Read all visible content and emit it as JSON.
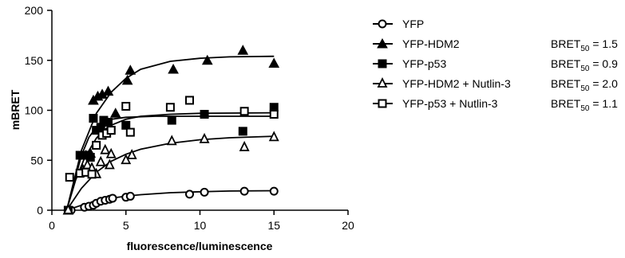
{
  "chart_data": {
    "type": "scatter",
    "xlabel": "fluorescence/luminescence",
    "ylabel": "mBRET",
    "xlim": [
      0,
      20
    ],
    "ylim": [
      0,
      200
    ],
    "x_ticks": [
      0,
      5,
      10,
      15,
      20
    ],
    "y_ticks": [
      0,
      50,
      100,
      150,
      200
    ],
    "grid": false,
    "legend_position": "right",
    "bret_label_main": "BRET",
    "bret_label_sub": "50",
    "series": [
      {
        "name": "YFP",
        "marker": "open-circle",
        "bret50": "",
        "points": [
          [
            1.1,
            0
          ],
          [
            1.3,
            0
          ],
          [
            2.2,
            3
          ],
          [
            2.5,
            4
          ],
          [
            2.8,
            5
          ],
          [
            3.0,
            7
          ],
          [
            3.3,
            9
          ],
          [
            3.6,
            10
          ],
          [
            3.9,
            11
          ],
          [
            4.1,
            12
          ],
          [
            5.0,
            13
          ],
          [
            5.3,
            14
          ],
          [
            9.3,
            16
          ],
          [
            10.3,
            18
          ],
          [
            13.0,
            19
          ],
          [
            15.0,
            19
          ]
        ],
        "curve": [
          [
            1.0,
            0
          ],
          [
            2,
            5
          ],
          [
            3,
            9
          ],
          [
            4,
            12
          ],
          [
            5,
            14
          ],
          [
            6,
            15.5
          ],
          [
            8,
            17.5
          ],
          [
            10,
            18.5
          ],
          [
            12,
            19.2
          ],
          [
            15,
            19.5
          ]
        ]
      },
      {
        "name": "YFP-HDM2",
        "marker": "filled-triangle",
        "bret50": " = 1.5",
        "points": [
          [
            1.1,
            0
          ],
          [
            2.0,
            38
          ],
          [
            2.3,
            55
          ],
          [
            2.6,
            57
          ],
          [
            2.8,
            110
          ],
          [
            3.1,
            114
          ],
          [
            3.4,
            116
          ],
          [
            3.8,
            119
          ],
          [
            4.3,
            97
          ],
          [
            5.1,
            130
          ],
          [
            5.3,
            140
          ],
          [
            8.2,
            141
          ],
          [
            10.5,
            150
          ],
          [
            12.9,
            160
          ],
          [
            15.0,
            147
          ]
        ],
        "curve": [
          [
            1.0,
            0
          ],
          [
            2,
            60
          ],
          [
            3,
            97
          ],
          [
            4,
            118
          ],
          [
            5,
            132
          ],
          [
            6,
            141
          ],
          [
            8,
            149
          ],
          [
            10,
            152
          ],
          [
            12,
            153.5
          ],
          [
            15,
            154
          ]
        ]
      },
      {
        "name": "YFP-p53",
        "marker": "filled-square",
        "bret50": " = 0.9",
        "points": [
          [
            1.1,
            0
          ],
          [
            1.9,
            55
          ],
          [
            2.3,
            55
          ],
          [
            2.6,
            53
          ],
          [
            2.8,
            92
          ],
          [
            3.0,
            80
          ],
          [
            3.3,
            83
          ],
          [
            3.5,
            90
          ],
          [
            3.8,
            88
          ],
          [
            4.0,
            80
          ],
          [
            5.0,
            85
          ],
          [
            8.1,
            90
          ],
          [
            10.3,
            96
          ],
          [
            12.9,
            79
          ],
          [
            15.0,
            103
          ]
        ],
        "curve": [
          [
            1.0,
            0
          ],
          [
            2,
            55
          ],
          [
            2.5,
            73
          ],
          [
            3,
            83
          ],
          [
            3.5,
            88
          ],
          [
            4,
            91
          ],
          [
            5,
            93
          ],
          [
            7,
            94
          ],
          [
            10,
            94
          ],
          [
            15,
            94
          ]
        ]
      },
      {
        "name": "YFP-HDM2 + Nutlin-3",
        "marker": "open-triangle",
        "bret50": " = 2.0",
        "points": [
          [
            1.1,
            0
          ],
          [
            2.1,
            40
          ],
          [
            2.4,
            45
          ],
          [
            2.7,
            42
          ],
          [
            3.0,
            36
          ],
          [
            3.3,
            48
          ],
          [
            3.6,
            60
          ],
          [
            3.9,
            45
          ],
          [
            4.0,
            56
          ],
          [
            5.0,
            50
          ],
          [
            5.4,
            55
          ],
          [
            8.1,
            69
          ],
          [
            10.3,
            71
          ],
          [
            13.0,
            63
          ],
          [
            15.0,
            73
          ]
        ],
        "curve": [
          [
            1.0,
            0
          ],
          [
            2,
            22
          ],
          [
            3,
            38
          ],
          [
            4,
            49
          ],
          [
            5,
            56
          ],
          [
            6,
            61
          ],
          [
            8,
            67
          ],
          [
            10,
            70.5
          ],
          [
            12,
            72.5
          ],
          [
            15,
            74
          ]
        ]
      },
      {
        "name": "YFP-p53 + Nutlin-3",
        "marker": "open-square",
        "bret50": " = 1.1",
        "points": [
          [
            1.2,
            33
          ],
          [
            1.9,
            37
          ],
          [
            2.3,
            38
          ],
          [
            2.7,
            36
          ],
          [
            3.0,
            65
          ],
          [
            3.4,
            75
          ],
          [
            3.7,
            77
          ],
          [
            4.0,
            80
          ],
          [
            5.0,
            104
          ],
          [
            5.3,
            78
          ],
          [
            8.0,
            103
          ],
          [
            9.3,
            110
          ],
          [
            13.0,
            99
          ],
          [
            15.0,
            96
          ]
        ],
        "curve": [
          [
            1.0,
            0
          ],
          [
            1.6,
            30
          ],
          [
            2.2,
            52
          ],
          [
            3,
            72
          ],
          [
            3.5,
            80
          ],
          [
            4,
            85
          ],
          [
            5,
            91
          ],
          [
            6,
            94
          ],
          [
            8,
            96
          ],
          [
            10,
            97
          ],
          [
            15,
            97.5
          ]
        ]
      }
    ]
  }
}
